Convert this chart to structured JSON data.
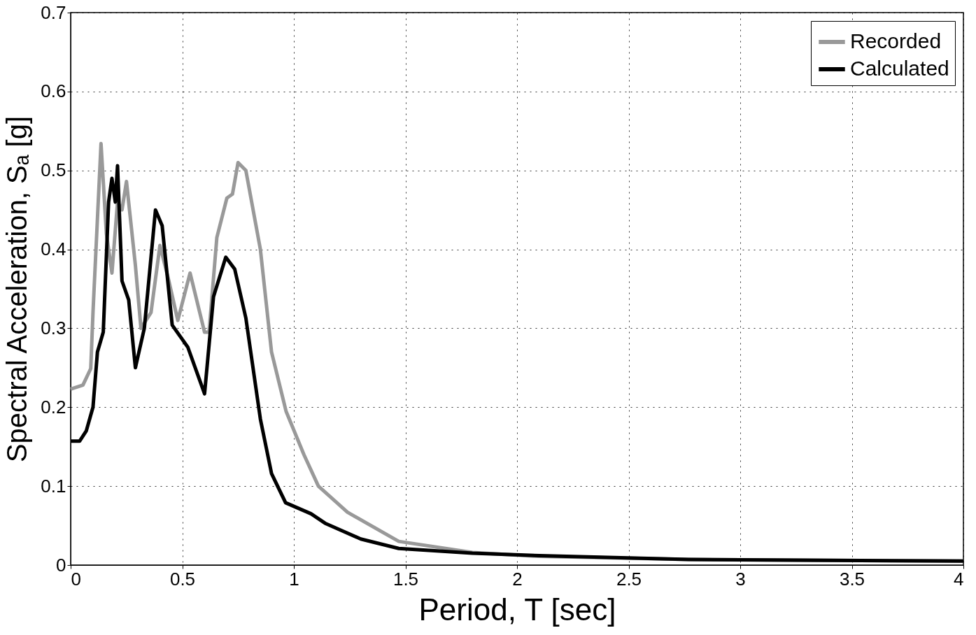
{
  "chart_data": {
    "type": "line",
    "xlabel": "Period, T [sec]",
    "ylabel": "Spectral Acceleration, Sₐ [g]",
    "xlim": [
      0,
      4
    ],
    "xticks": [
      0,
      0.5,
      1,
      1.5,
      2,
      2.5,
      3,
      3.5,
      4
    ],
    "ylim": [
      0,
      0.7
    ],
    "yticks": [
      0,
      0.1,
      0.2,
      0.3,
      0.4,
      0.5,
      0.6,
      0.7
    ],
    "grid": true,
    "legend": "top right",
    "marker": "none",
    "line_style": "solid",
    "series": [
      {
        "name": "Recorded",
        "color": "#999999",
        "x": [
          0,
          0.055,
          0.09,
          0.1,
          0.136,
          0.16,
          0.185,
          0.21,
          0.23,
          0.25,
          0.29,
          0.315,
          0.36,
          0.4,
          0.44,
          0.48,
          0.535,
          0.6,
          0.62,
          0.655,
          0.7,
          0.725,
          0.75,
          0.785,
          0.85,
          0.9,
          0.965,
          1.045,
          1.11,
          1.24,
          1.47,
          1.8,
          2.1,
          2.77,
          4
        ],
        "values": [
          0.223,
          0.228,
          0.249,
          0.32,
          0.534,
          0.42,
          0.37,
          0.46,
          0.45,
          0.486,
          0.38,
          0.3,
          0.32,
          0.405,
          0.36,
          0.31,
          0.37,
          0.295,
          0.295,
          0.415,
          0.465,
          0.47,
          0.51,
          0.5,
          0.4,
          0.27,
          0.195,
          0.14,
          0.1,
          0.067,
          0.03,
          0.016,
          0.011,
          0.007,
          0.005
        ]
      },
      {
        "name": "Calculated",
        "color": "#000000",
        "x": [
          0,
          0.04,
          0.07,
          0.1,
          0.12,
          0.146,
          0.17,
          0.185,
          0.2,
          0.21,
          0.23,
          0.26,
          0.29,
          0.33,
          0.38,
          0.41,
          0.455,
          0.525,
          0.6,
          0.64,
          0.695,
          0.735,
          0.785,
          0.85,
          0.9,
          0.963,
          1.077,
          1.14,
          1.3,
          1.47,
          1.8,
          2.1,
          2.77,
          4
        ],
        "values": [
          0.157,
          0.157,
          0.17,
          0.2,
          0.27,
          0.295,
          0.46,
          0.49,
          0.46,
          0.506,
          0.36,
          0.336,
          0.25,
          0.3,
          0.45,
          0.43,
          0.304,
          0.276,
          0.217,
          0.34,
          0.39,
          0.375,
          0.313,
          0.185,
          0.116,
          0.079,
          0.065,
          0.053,
          0.033,
          0.021,
          0.015,
          0.012,
          0.007,
          0.005
        ]
      }
    ]
  }
}
